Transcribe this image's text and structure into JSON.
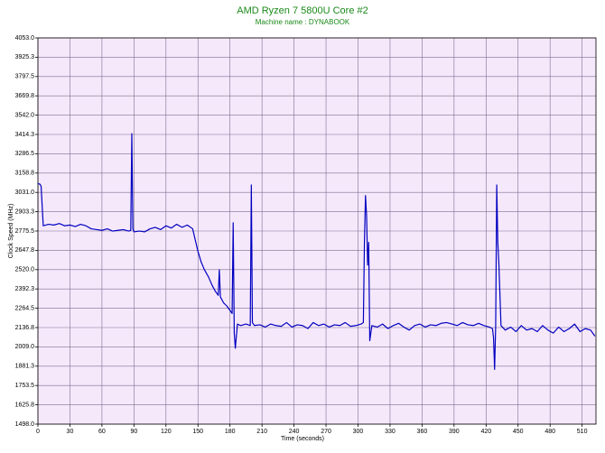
{
  "chart_data": {
    "type": "line",
    "title": "AMD Ryzen 7 5800U Core #2",
    "subtitle": "Machine name : DYNABOOK",
    "x_label": "Time (seconds)",
    "y_label": "Clock Speed (MHz)",
    "xlim": [
      0,
      523
    ],
    "ylim": [
      1498,
      4053
    ],
    "xticks": [
      0,
      30,
      60,
      90,
      120,
      150,
      180,
      210,
      240,
      270,
      300,
      330,
      360,
      390,
      420,
      450,
      480,
      510
    ],
    "yticks": [
      {
        "value": 1498,
        "label": "1498.0"
      },
      1625.8,
      1753.5,
      1881.3,
      {
        "value": 2009,
        "label": "2009.0"
      },
      2136.8,
      2264.5,
      2392.3,
      {
        "value": 2520,
        "label": "2520.0"
      },
      2647.8,
      2775.5,
      2903.3,
      {
        "value": 3031,
        "label": "3031.0"
      },
      3158.8,
      3286.5,
      3414.3,
      {
        "value": 3542,
        "label": "3542.0"
      },
      3669.8,
      3797.5,
      3925.3,
      {
        "value": 4053,
        "label": "4053.0"
      }
    ],
    "grid": true,
    "background": "#f6e8fb",
    "x": [
      0,
      2,
      3,
      5,
      10,
      15,
      20,
      25,
      30,
      35,
      40,
      45,
      50,
      55,
      60,
      65,
      70,
      75,
      80,
      85,
      87,
      88,
      89,
      90,
      95,
      100,
      105,
      110,
      115,
      120,
      125,
      130,
      135,
      140,
      145,
      148,
      150,
      153,
      156,
      160,
      163,
      166,
      169,
      170,
      171,
      174,
      177,
      180,
      182,
      183,
      184,
      185,
      187,
      190,
      195,
      199,
      200,
      201,
      203,
      208,
      213,
      218,
      223,
      228,
      233,
      238,
      243,
      248,
      253,
      258,
      263,
      268,
      273,
      278,
      283,
      288,
      293,
      298,
      303,
      305,
      306,
      307,
      308,
      309,
      310,
      311,
      313,
      318,
      323,
      328,
      333,
      338,
      343,
      348,
      353,
      358,
      363,
      368,
      373,
      378,
      383,
      388,
      393,
      398,
      403,
      408,
      413,
      418,
      423,
      426,
      427,
      428,
      429,
      430,
      431,
      432,
      434,
      438,
      443,
      448,
      453,
      458,
      463,
      468,
      473,
      478,
      483,
      488,
      493,
      498,
      503,
      508,
      513,
      518,
      522
    ],
    "series": [
      {
        "name": "Core #2",
        "color": "#0000c0",
        "values": [
          3090,
          3085,
          3070,
          2810,
          2820,
          2815,
          2825,
          2810,
          2815,
          2805,
          2820,
          2810,
          2790,
          2785,
          2780,
          2790,
          2775,
          2780,
          2785,
          2775,
          2780,
          3420,
          2790,
          2770,
          2775,
          2770,
          2790,
          2800,
          2785,
          2810,
          2795,
          2820,
          2800,
          2815,
          2790,
          2700,
          2640,
          2570,
          2520,
          2470,
          2420,
          2380,
          2350,
          2520,
          2340,
          2300,
          2280,
          2250,
          2230,
          2830,
          2100,
          2000,
          2160,
          2150,
          2160,
          2150,
          3080,
          2170,
          2150,
          2155,
          2140,
          2160,
          2150,
          2145,
          2170,
          2140,
          2155,
          2150,
          2130,
          2170,
          2150,
          2160,
          2140,
          2155,
          2150,
          2170,
          2145,
          2150,
          2160,
          2170,
          2700,
          3010,
          2880,
          2550,
          2700,
          2050,
          2150,
          2140,
          2160,
          2130,
          2150,
          2165,
          2140,
          2120,
          2150,
          2160,
          2140,
          2155,
          2150,
          2165,
          2170,
          2160,
          2150,
          2170,
          2155,
          2150,
          2165,
          2150,
          2140,
          2130,
          2070,
          1860,
          2150,
          3080,
          2700,
          2560,
          2150,
          2120,
          2140,
          2110,
          2150,
          2120,
          2130,
          2110,
          2150,
          2120,
          2100,
          2140,
          2110,
          2130,
          2160,
          2110,
          2130,
          2120,
          2080
        ]
      }
    ]
  }
}
